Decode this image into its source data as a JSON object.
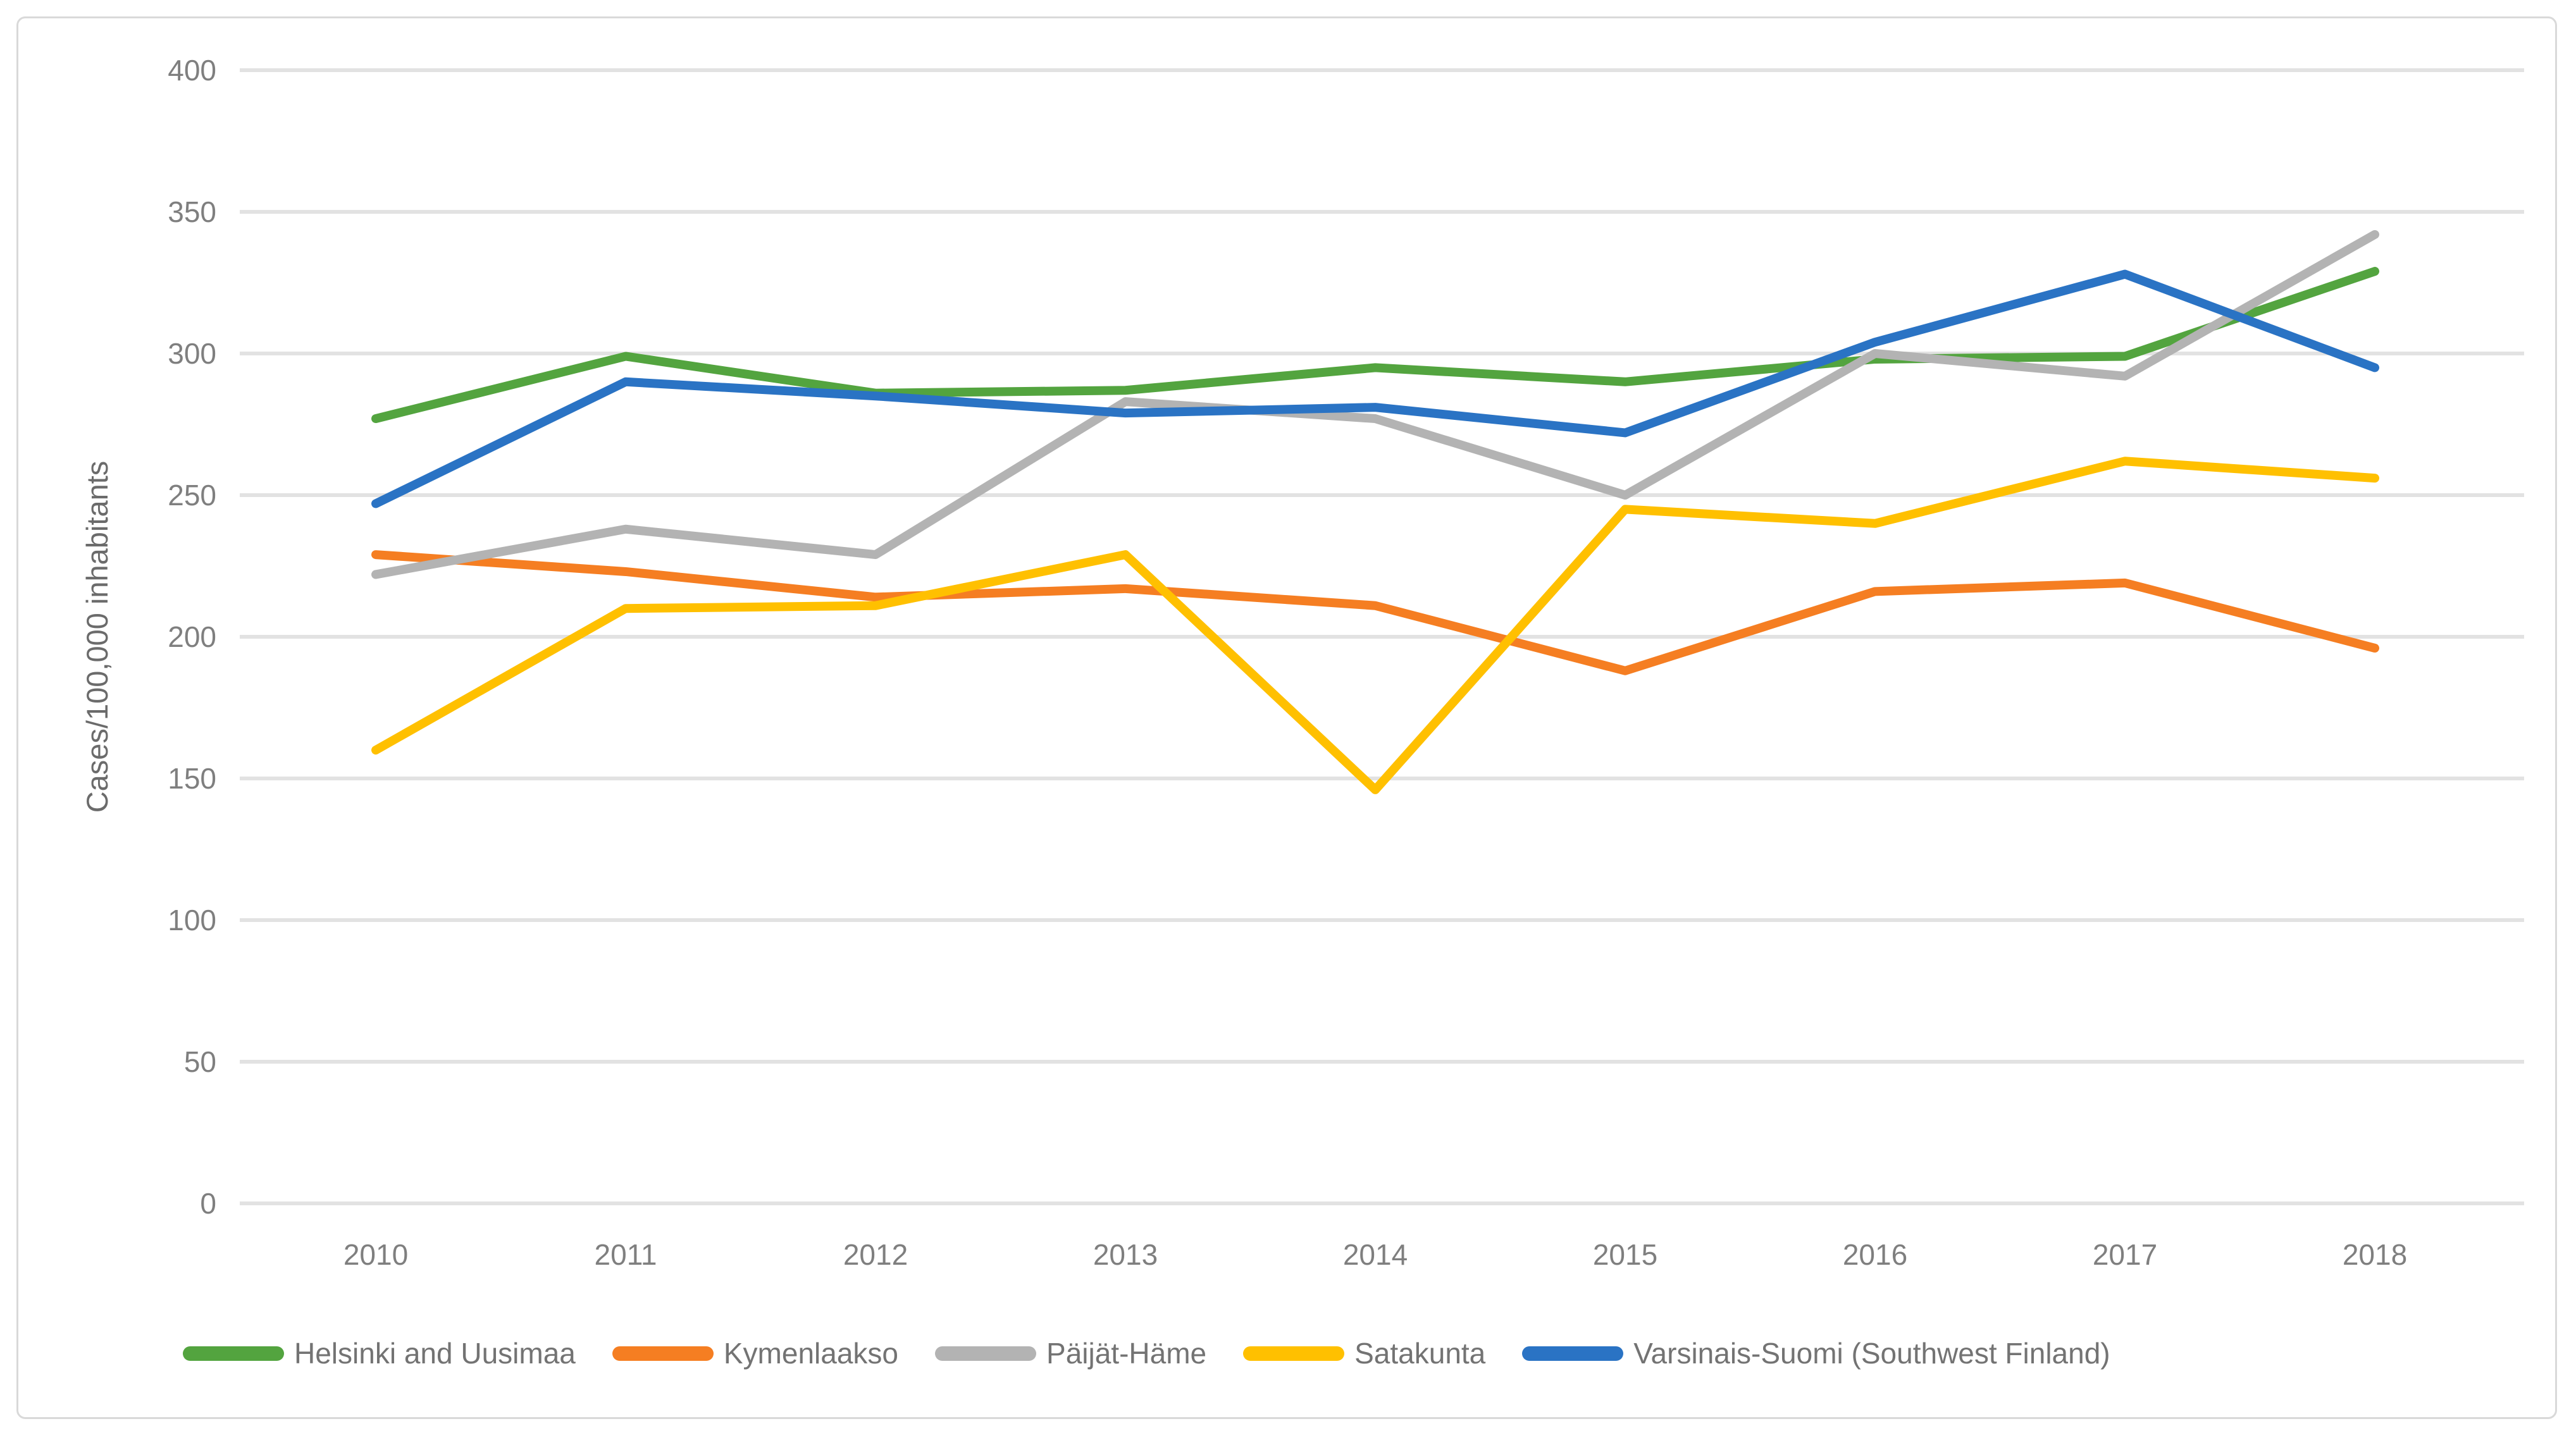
{
  "chart_data": {
    "type": "line",
    "title": "",
    "xlabel": "",
    "ylabel": "Cases/100,000 inhabitants",
    "categories": [
      "2010",
      "2011",
      "2012",
      "2013",
      "2014",
      "2015",
      "2016",
      "2017",
      "2018"
    ],
    "y_ticks": [
      0,
      50,
      100,
      150,
      200,
      250,
      300,
      350,
      400
    ],
    "ylim": [
      0,
      400
    ],
    "grid": "horizontal",
    "gridline_color": "#e2e2e2",
    "legend_position": "bottom",
    "series": [
      {
        "name": "Helsinki and Uusimaa",
        "color": "#53a43f",
        "values": [
          277,
          299,
          286,
          287,
          295,
          290,
          298,
          299,
          329
        ]
      },
      {
        "name": "Kymenlaakso",
        "color": "#f57e22",
        "values": [
          229,
          223,
          214,
          217,
          211,
          188,
          216,
          219,
          196
        ]
      },
      {
        "name": "Päijät-Häme",
        "color": "#b3b3b3",
        "values": [
          222,
          238,
          229,
          283,
          277,
          250,
          300,
          292,
          342
        ]
      },
      {
        "name": "Satakunta",
        "color": "#ffc000",
        "values": [
          160,
          210,
          211,
          229,
          146,
          245,
          240,
          262,
          256
        ]
      },
      {
        "name": "Varsinais-Suomi (Southwest Finland)",
        "color": "#2a73c4",
        "values": [
          247,
          290,
          285,
          279,
          281,
          272,
          304,
          328,
          295
        ]
      }
    ]
  }
}
